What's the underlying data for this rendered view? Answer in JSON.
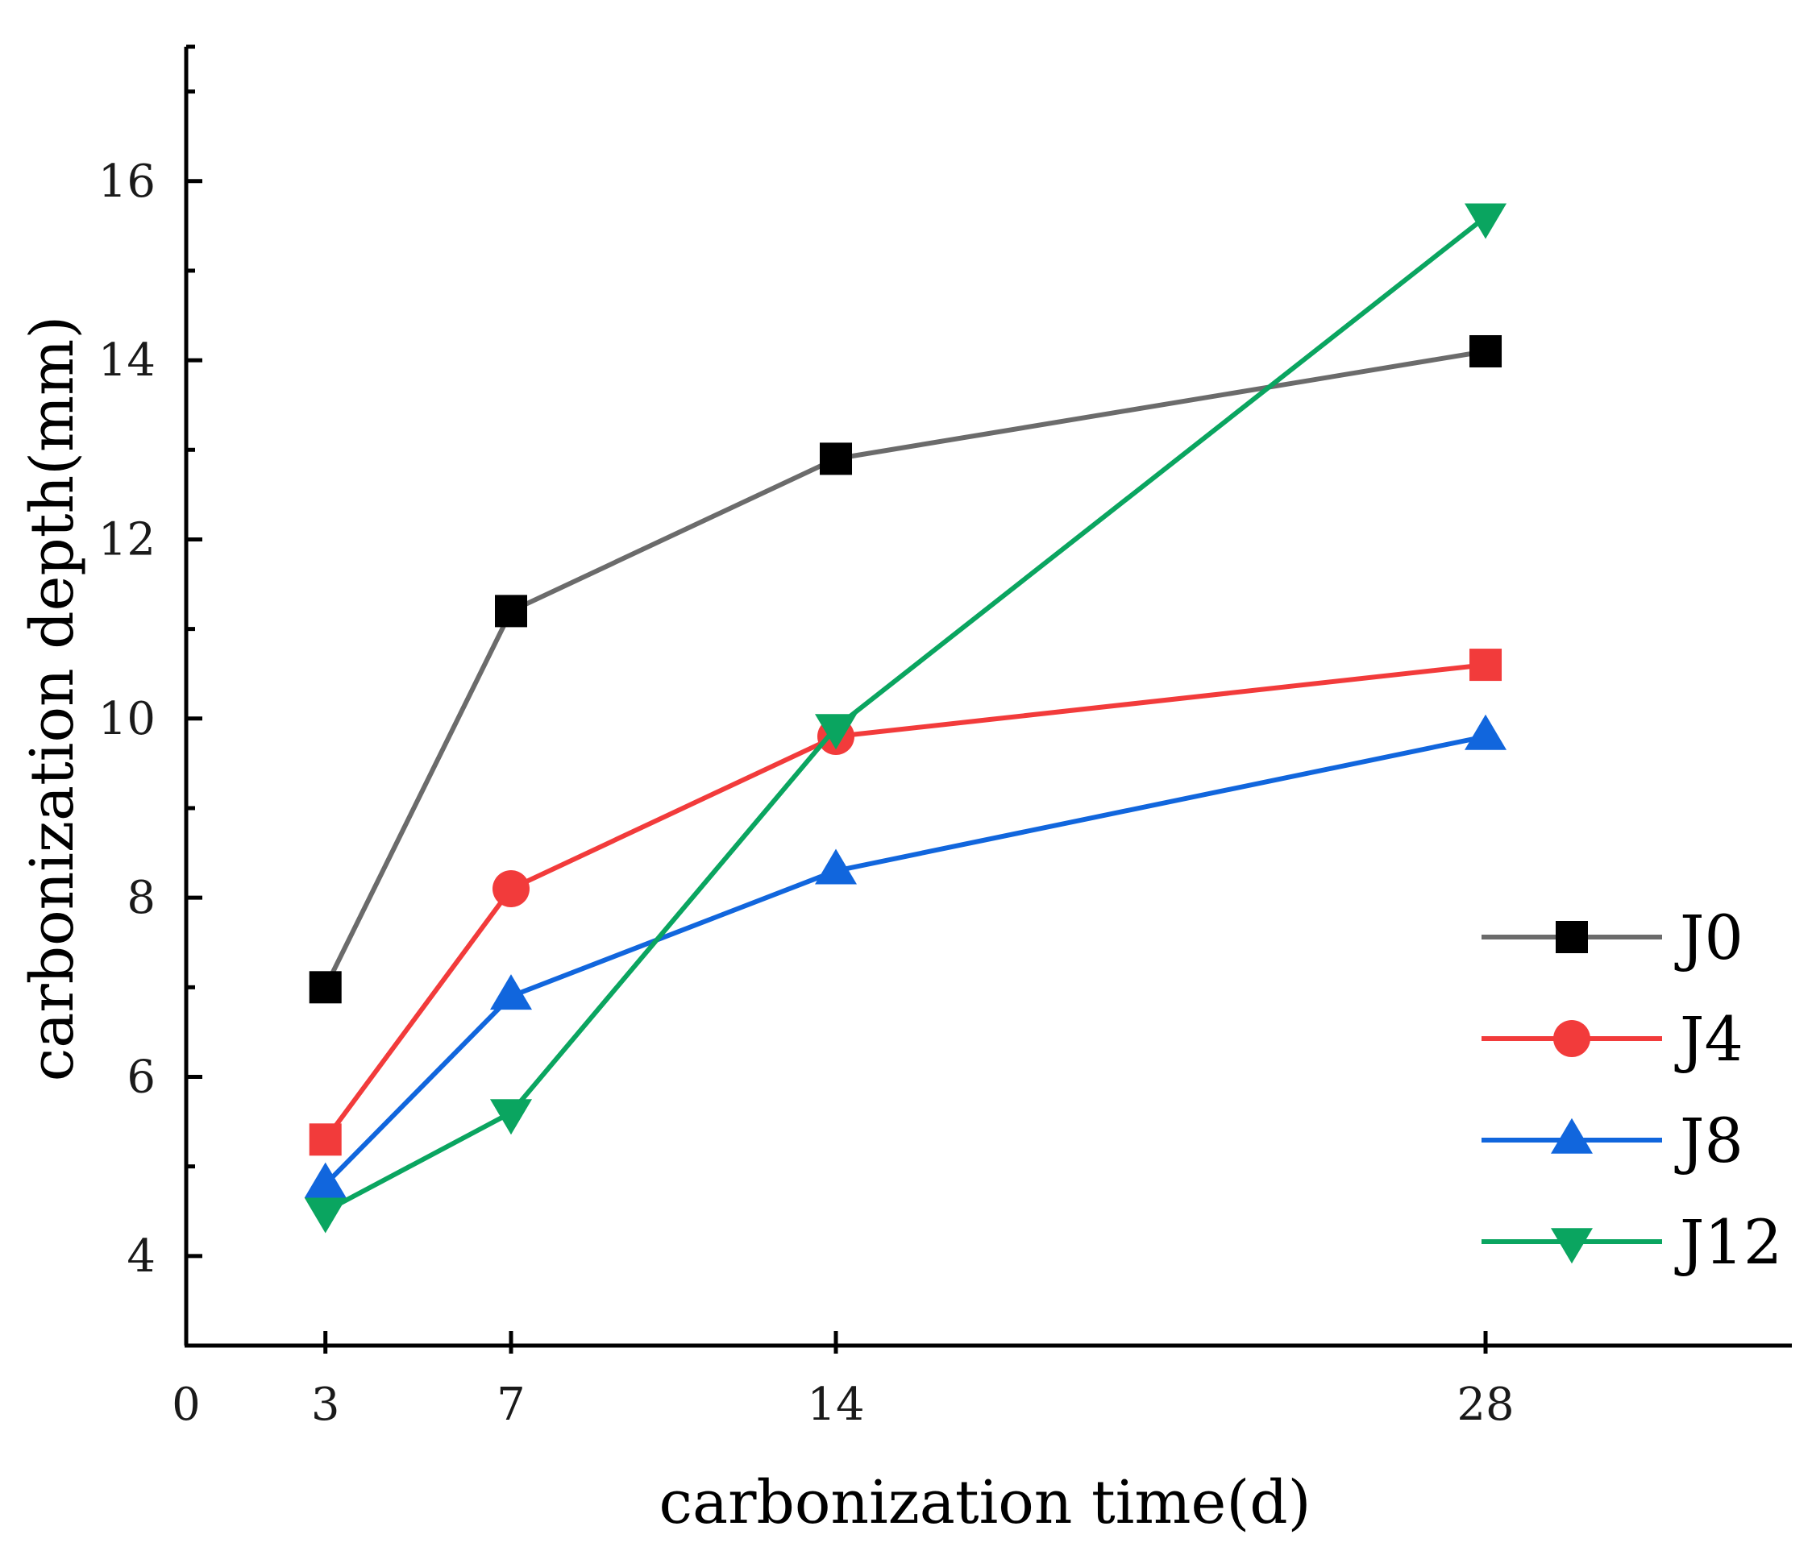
{
  "chart_data": {
    "type": "line",
    "title": "",
    "xlabel": "carbonization time(d)",
    "ylabel": "carbonization depth(mm)",
    "xlim": [
      0,
      34.6
    ],
    "ylim": [
      3,
      17.5
    ],
    "x_ticks": [
      0,
      3,
      7,
      14,
      28
    ],
    "y_ticks": [
      4,
      6,
      8,
      10,
      12,
      14,
      16
    ],
    "grid": false,
    "legend_position": "bottom-right",
    "x": [
      3,
      7,
      14,
      28
    ],
    "series": [
      {
        "name": "J0",
        "values": [
          7.0,
          11.2,
          12.9,
          14.1
        ],
        "color": "#6b6b6b",
        "marker_color": "#000000",
        "marker": "square"
      },
      {
        "name": "J4",
        "values": [
          5.3,
          8.1,
          9.8,
          10.6
        ],
        "color": "#f23b3b",
        "marker_color": "#f23b3b",
        "marker": "circle",
        "first_marker": "square",
        "last_marker": "square"
      },
      {
        "name": "J8",
        "values": [
          4.8,
          6.9,
          8.3,
          9.8
        ],
        "color": "#1166dd",
        "marker_color": "#1166dd",
        "marker": "triangle-up"
      },
      {
        "name": "J12",
        "values": [
          4.5,
          5.6,
          9.9,
          15.6
        ],
        "color": "#0aa560",
        "marker_color": "#0aa560",
        "marker": "triangle-down"
      }
    ]
  }
}
